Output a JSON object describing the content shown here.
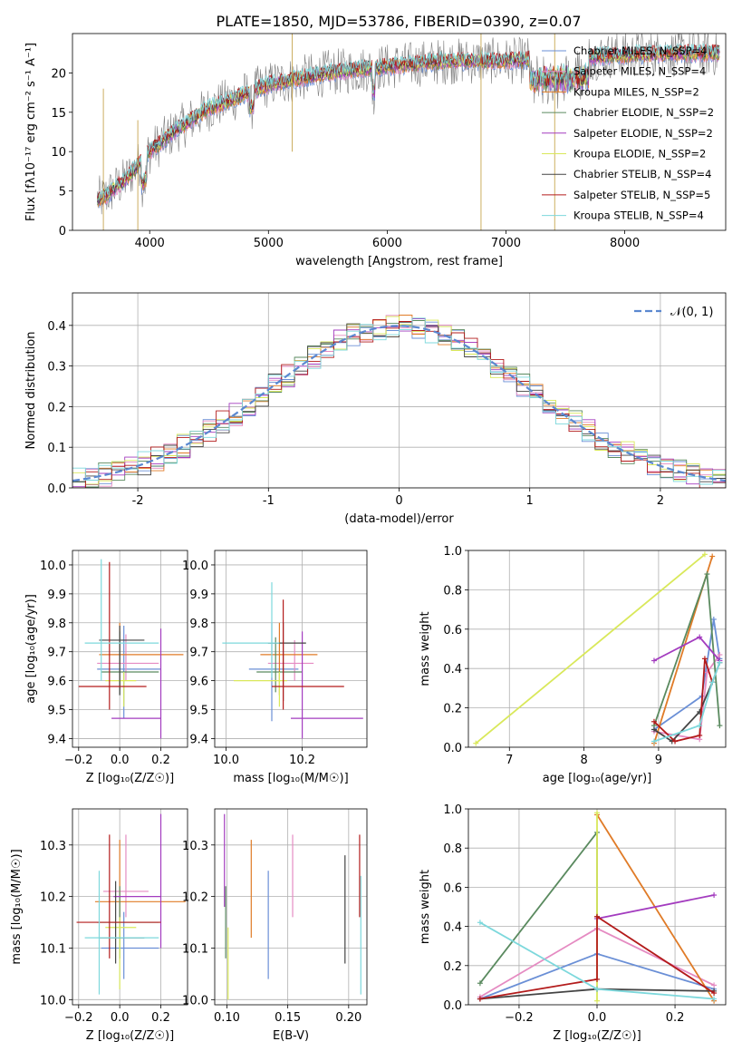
{
  "chart_data": [
    {
      "id": "spectrum",
      "type": "line",
      "title": "PLATE=1850, MJD=53786, FIBERID=0390, z=0.07",
      "xlabel": "wavelength [Angstrom, rest frame]",
      "ylabel": "Flux [fλ10⁻¹⁷ erg cm⁻² s⁻¹ A⁻¹]",
      "xlim": [
        3350,
        8850
      ],
      "ylim": [
        0,
        25
      ],
      "xticks": [
        4000,
        5000,
        6000,
        7000,
        8000
      ],
      "yticks": [
        0,
        5,
        10,
        15,
        20
      ],
      "legend_position": "top-right",
      "series": [
        {
          "name": "Chabrier MILES, N_SSP=4",
          "color": "#6a8fd6"
        },
        {
          "name": "Salpeter MILES, N_SSP=4",
          "color": "#e58bc2"
        },
        {
          "name": "Kroupa MILES, N_SSP=2",
          "color": "#e07b27"
        },
        {
          "name": "Chabrier ELODIE, N_SSP=2",
          "color": "#5a8a5f"
        },
        {
          "name": "Salpeter ELODIE, N_SSP=2",
          "color": "#a33cbf"
        },
        {
          "name": "Kroupa ELODIE, N_SSP=2",
          "color": "#d9e85a"
        },
        {
          "name": "Chabrier STELIB, N_SSP=4",
          "color": "#444444"
        },
        {
          "name": "Salpeter STELIB, N_SSP=5",
          "color": "#b31b1b"
        },
        {
          "name": "Kroupa STELIB, N_SSP=4",
          "color": "#7dd8dc"
        }
      ],
      "data_color": "#808080",
      "continuum": {
        "x": [
          3600,
          3800,
          4000,
          4200,
          4500,
          5000,
          5500,
          6000,
          6500,
          7000,
          7500,
          8000,
          8500
        ],
        "y": [
          4.0,
          6.5,
          10.0,
          12.5,
          15.5,
          18.5,
          20.0,
          20.8,
          21.5,
          21.5,
          21.8,
          22.3,
          22.5
        ]
      }
    },
    {
      "id": "residuals",
      "type": "histogram",
      "xlabel": "(data-model)/error",
      "ylabel": "Normed distribution",
      "xlim": [
        -2.5,
        2.5
      ],
      "ylim": [
        0,
        0.48
      ],
      "xticks": [
        -2,
        -1,
        0,
        1,
        2
      ],
      "yticks": [
        0.0,
        0.1,
        0.2,
        0.3,
        0.4
      ],
      "grid": true,
      "gaussian_label": "𝒩(0, 1)",
      "gaussian_color": "#5b88d0",
      "bin_width": 0.1
    },
    {
      "id": "age-vs-Z",
      "type": "errorbar",
      "xlabel": "Z [log₁₀(Z/Z☉)]",
      "ylabel": "age  [log₁₀(age/yr)]",
      "xlim": [
        -0.23,
        0.33
      ],
      "ylim": [
        9.37,
        10.05
      ],
      "xticks": [
        -0.2,
        0.0,
        0.2
      ],
      "xtick_labels": [
        "−0.2",
        "0.0",
        "0.2"
      ],
      "yticks": [
        9.4,
        9.5,
        9.6,
        9.7,
        9.8,
        9.9,
        10.0
      ],
      "points": [
        {
          "x": 0.02,
          "y": 9.64,
          "xlo": -0.11,
          "xhi": 0.2,
          "ylo": 9.47,
          "yhi": 9.79,
          "color": "#6a8fd6"
        },
        {
          "x": 0.03,
          "y": 9.66,
          "xlo": -0.11,
          "xhi": 0.19,
          "ylo": 9.6,
          "yhi": 9.76,
          "color": "#e58bc2"
        },
        {
          "x": 0.0,
          "y": 9.69,
          "xlo": -0.1,
          "xhi": 0.31,
          "ylo": 9.57,
          "yhi": 9.8,
          "color": "#e07b27"
        },
        {
          "x": 0.0,
          "y": 9.63,
          "xlo": -0.09,
          "xhi": 0.19,
          "ylo": 9.55,
          "yhi": 9.77,
          "color": "#5a8a5f"
        },
        {
          "x": 0.2,
          "y": 9.47,
          "xlo": -0.04,
          "xhi": 0.2,
          "ylo": 9.4,
          "yhi": 9.78,
          "color": "#a33cbf"
        },
        {
          "x": 0.02,
          "y": 9.6,
          "xlo": -0.07,
          "xhi": 0.08,
          "ylo": 9.51,
          "yhi": 9.63,
          "color": "#d9e85a"
        },
        {
          "x": 0.0,
          "y": 9.74,
          "xlo": -0.1,
          "xhi": 0.12,
          "ylo": 9.55,
          "yhi": 9.79,
          "color": "#444444"
        },
        {
          "x": -0.05,
          "y": 9.58,
          "xlo": -0.2,
          "xhi": 0.13,
          "ylo": 9.5,
          "yhi": 10.01,
          "color": "#b31b1b"
        },
        {
          "x": -0.09,
          "y": 9.73,
          "xlo": -0.17,
          "xhi": 0.19,
          "ylo": 9.6,
          "yhi": 10.02,
          "color": "#7dd8dc"
        }
      ]
    },
    {
      "id": "age-vs-mass",
      "type": "errorbar",
      "xlabel": "mass [log₁₀(M/M☉)]",
      "ylabel": "",
      "xlim": [
        9.97,
        10.37
      ],
      "ylim": [
        9.37,
        10.05
      ],
      "xticks": [
        10.0,
        10.2
      ],
      "xtick_labels": [
        "10.0",
        "10.2"
      ],
      "yticks": [
        9.4,
        9.5,
        9.6,
        9.7,
        9.8,
        9.9,
        10.0
      ],
      "points": [
        {
          "x": 10.12,
          "y": 9.64,
          "xlo": 10.06,
          "xhi": 10.19,
          "ylo": 9.46,
          "yhi": 9.8,
          "color": "#6a8fd6"
        },
        {
          "x": 10.18,
          "y": 9.66,
          "xlo": 10.11,
          "xhi": 10.23,
          "ylo": 9.6,
          "yhi": 9.74,
          "color": "#e58bc2"
        },
        {
          "x": 10.14,
          "y": 9.69,
          "xlo": 10.09,
          "xhi": 10.24,
          "ylo": 9.55,
          "yhi": 9.8,
          "color": "#e07b27"
        },
        {
          "x": 10.13,
          "y": 9.63,
          "xlo": 10.08,
          "xhi": 10.2,
          "ylo": 9.56,
          "yhi": 9.75,
          "color": "#5a8a5f"
        },
        {
          "x": 10.2,
          "y": 9.47,
          "xlo": 10.17,
          "xhi": 10.36,
          "ylo": 9.4,
          "yhi": 9.77,
          "color": "#a33cbf"
        },
        {
          "x": 10.14,
          "y": 9.6,
          "xlo": 10.02,
          "xhi": 10.16,
          "ylo": 9.51,
          "yhi": 9.63,
          "color": "#d9e85a"
        },
        {
          "x": 10.15,
          "y": 9.73,
          "xlo": 10.11,
          "xhi": 10.21,
          "ylo": 9.53,
          "yhi": 9.8,
          "color": "#444444"
        },
        {
          "x": 10.15,
          "y": 9.58,
          "xlo": 10.12,
          "xhi": 10.31,
          "ylo": 9.5,
          "yhi": 9.88,
          "color": "#b31b1b"
        },
        {
          "x": 10.12,
          "y": 9.73,
          "xlo": 9.99,
          "xhi": 10.14,
          "ylo": 9.61,
          "yhi": 9.94,
          "color": "#7dd8dc"
        }
      ]
    },
    {
      "id": "weight-vs-age",
      "type": "line",
      "xlabel": "age  [log₁₀(age/yr)]",
      "ylabel": "mass weight",
      "xlim": [
        6.45,
        9.9
      ],
      "ylim": [
        0,
        1
      ],
      "xticks": [
        7,
        8,
        9
      ],
      "yticks": [
        0.0,
        0.2,
        0.4,
        0.6,
        0.8,
        1.0
      ],
      "grid": true,
      "series": [
        {
          "color": "#6a8fd6",
          "x": [
            8.94,
            9.58,
            9.74,
            9.82
          ],
          "y": [
            0.09,
            0.26,
            0.65,
            0.45
          ]
        },
        {
          "color": "#e58bc2",
          "x": [
            8.94,
            9.55,
            9.65,
            9.82
          ],
          "y": [
            0.08,
            0.04,
            0.38,
            0.47
          ]
        },
        {
          "color": "#e07b27",
          "x": [
            8.94,
            9.72
          ],
          "y": [
            0.02,
            0.97
          ]
        },
        {
          "color": "#5a8a5f",
          "x": [
            8.94,
            9.65,
            9.82
          ],
          "y": [
            0.11,
            0.88,
            0.11
          ]
        },
        {
          "color": "#a33cbf",
          "x": [
            8.94,
            9.55,
            9.82
          ],
          "y": [
            0.44,
            0.56,
            0.44
          ]
        },
        {
          "color": "#d9e85a",
          "x": [
            6.55,
            9.62
          ],
          "y": [
            0.02,
            0.98
          ]
        },
        {
          "color": "#444444",
          "x": [
            8.94,
            9.18,
            9.55,
            9.72,
            9.82
          ],
          "y": [
            0.09,
            0.03,
            0.18,
            0.33,
            0.43
          ]
        },
        {
          "color": "#b31b1b",
          "x": [
            8.94,
            9.22,
            9.55,
            9.62,
            9.72
          ],
          "y": [
            0.13,
            0.03,
            0.06,
            0.45,
            0.33
          ]
        },
        {
          "color": "#7dd8dc",
          "x": [
            8.94,
            9.55,
            9.72,
            9.82
          ],
          "y": [
            0.03,
            0.11,
            0.33,
            0.43
          ]
        }
      ]
    },
    {
      "id": "mass-vs-Z",
      "type": "errorbar",
      "xlabel": "Z [log₁₀(Z/Z☉)]",
      "ylabel": "mass [log₁₀(M/M☉)]",
      "xlim": [
        -0.23,
        0.33
      ],
      "ylim": [
        9.99,
        10.37
      ],
      "xticks": [
        -0.2,
        0.0,
        0.2
      ],
      "xtick_labels": [
        "−0.2",
        "0.0",
        "0.2"
      ],
      "yticks": [
        10.0,
        10.1,
        10.2,
        10.3
      ],
      "points": [
        {
          "x": 0.02,
          "y": 10.1,
          "xlo": -0.09,
          "xhi": 0.19,
          "ylo": 10.04,
          "yhi": 10.17,
          "color": "#6a8fd6"
        },
        {
          "x": 0.03,
          "y": 10.21,
          "xlo": -0.08,
          "xhi": 0.14,
          "ylo": 10.16,
          "yhi": 10.32,
          "color": "#e58bc2"
        },
        {
          "x": 0.0,
          "y": 10.19,
          "xlo": -0.12,
          "xhi": 0.32,
          "ylo": 10.12,
          "yhi": 10.31,
          "color": "#e07b27"
        },
        {
          "x": 0.0,
          "y": 10.15,
          "xlo": -0.11,
          "xhi": 0.19,
          "ylo": 10.08,
          "yhi": 10.22,
          "color": "#5a8a5f"
        },
        {
          "x": 0.2,
          "y": 10.2,
          "xlo": -0.03,
          "xhi": 0.2,
          "ylo": 10.1,
          "yhi": 10.36,
          "color": "#a33cbf"
        },
        {
          "x": 0.0,
          "y": 10.14,
          "xlo": -0.07,
          "xhi": 0.08,
          "ylo": 10.02,
          "yhi": 10.16,
          "color": "#d9e85a"
        },
        {
          "x": -0.02,
          "y": 10.12,
          "xlo": -0.1,
          "xhi": 0.12,
          "ylo": 10.07,
          "yhi": 10.23,
          "color": "#444444"
        },
        {
          "x": -0.05,
          "y": 10.15,
          "xlo": -0.21,
          "xhi": 0.2,
          "ylo": 10.08,
          "yhi": 10.32,
          "color": "#b31b1b"
        },
        {
          "x": -0.1,
          "y": 10.12,
          "xlo": -0.17,
          "xhi": 0.19,
          "ylo": 10.01,
          "yhi": 10.25,
          "color": "#7dd8dc"
        }
      ]
    },
    {
      "id": "mass-vs-ebv",
      "type": "errorbar",
      "xlabel": "E(B-V)",
      "ylabel": "",
      "xlim": [
        0.09,
        0.215
      ],
      "ylim": [
        9.99,
        10.37
      ],
      "xticks": [
        0.1,
        0.15,
        0.2
      ],
      "xtick_labels": [
        "0.10",
        "0.15",
        "0.20"
      ],
      "yticks": [
        10.0,
        10.1,
        10.2,
        10.3
      ],
      "points": [
        {
          "x": 0.134,
          "y": 10.15,
          "ylo": 10.04,
          "yhi": 10.25,
          "color": "#6a8fd6"
        },
        {
          "x": 0.154,
          "y": 10.23,
          "ylo": 10.16,
          "yhi": 10.32,
          "color": "#e58bc2"
        },
        {
          "x": 0.12,
          "y": 10.22,
          "ylo": 10.12,
          "yhi": 10.31,
          "color": "#e07b27"
        },
        {
          "x": 0.099,
          "y": 10.15,
          "ylo": 10.08,
          "yhi": 10.22,
          "color": "#5a8a5f"
        },
        {
          "x": 0.098,
          "y": 10.27,
          "ylo": 10.18,
          "yhi": 10.36,
          "color": "#a33cbf"
        },
        {
          "x": 0.101,
          "y": 10.09,
          "ylo": 10.0,
          "yhi": 10.14,
          "color": "#d9e85a"
        },
        {
          "x": 0.197,
          "y": 10.16,
          "ylo": 10.07,
          "yhi": 10.28,
          "color": "#444444"
        },
        {
          "x": 0.209,
          "y": 10.25,
          "ylo": 10.16,
          "yhi": 10.32,
          "color": "#b31b1b"
        },
        {
          "x": 0.21,
          "y": 10.12,
          "ylo": 10.01,
          "yhi": 10.24,
          "color": "#7dd8dc"
        }
      ]
    },
    {
      "id": "weight-vs-Z",
      "type": "line",
      "xlabel": "Z [log₁₀(Z/Z☉)]",
      "ylabel": "mass weight",
      "xlim": [
        -0.33,
        0.33
      ],
      "ylim": [
        0,
        1
      ],
      "xticks": [
        -0.2,
        0.0,
        0.2
      ],
      "xtick_labels": [
        "−0.2",
        "0.0",
        "0.2"
      ],
      "yticks": [
        0.0,
        0.2,
        0.4,
        0.6,
        0.8,
        1.0
      ],
      "grid": true,
      "series": [
        {
          "color": "#6a8fd6",
          "x": [
            -0.3,
            0.0,
            0.3
          ],
          "y": [
            0.03,
            0.26,
            0.08
          ]
        },
        {
          "color": "#e58bc2",
          "x": [
            -0.3,
            0.0,
            0.3
          ],
          "y": [
            0.04,
            0.39,
            0.1
          ]
        },
        {
          "color": "#e07b27",
          "x": [
            0.0,
            0.3
          ],
          "y": [
            0.97,
            0.02
          ]
        },
        {
          "color": "#5a8a5f",
          "x": [
            -0.3,
            0.0,
            0.0
          ],
          "y": [
            0.11,
            0.88,
            0.45
          ]
        },
        {
          "color": "#a33cbf",
          "x": [
            0.0,
            0.3
          ],
          "y": [
            0.44,
            0.56
          ]
        },
        {
          "color": "#d9e85a",
          "x": [
            0.0,
            0.0
          ],
          "y": [
            0.02,
            0.98
          ]
        },
        {
          "color": "#444444",
          "x": [
            -0.3,
            0.0,
            0.3
          ],
          "y": [
            0.03,
            0.08,
            0.07
          ]
        },
        {
          "color": "#b31b1b",
          "x": [
            -0.3,
            0.0,
            0.0,
            0.3
          ],
          "y": [
            0.03,
            0.13,
            0.45,
            0.06
          ]
        },
        {
          "color": "#7dd8dc",
          "x": [
            -0.3,
            0.0,
            0.3
          ],
          "y": [
            0.42,
            0.08,
            0.03
          ]
        }
      ]
    }
  ]
}
